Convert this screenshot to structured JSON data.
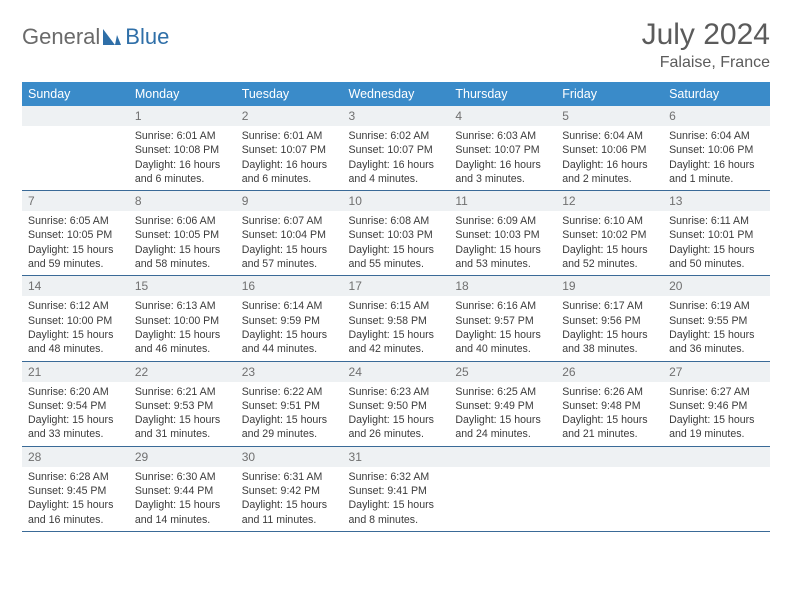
{
  "brand": {
    "part1": "General",
    "part2": "Blue"
  },
  "title": {
    "month": "July 2024",
    "location": "Falaise, France"
  },
  "colors": {
    "header_bg": "#3a8bc9",
    "header_text": "#ffffff",
    "daynum_bg": "#eef1f3",
    "daynum_text": "#707070",
    "rule": "#3a6a97",
    "body_text": "#3b3b3b",
    "title_text": "#5b5b5b",
    "logo_gray": "#6a6a6a",
    "logo_blue": "#2f6fa8"
  },
  "weekdays": [
    "Sunday",
    "Monday",
    "Tuesday",
    "Wednesday",
    "Thursday",
    "Friday",
    "Saturday"
  ],
  "weeks": [
    {
      "nums": [
        "",
        "1",
        "2",
        "3",
        "4",
        "5",
        "6"
      ],
      "cells": [
        {
          "empty": true
        },
        {
          "sunrise": "6:01 AM",
          "sunset": "10:08 PM",
          "daylight": "16 hours and 6 minutes."
        },
        {
          "sunrise": "6:01 AM",
          "sunset": "10:07 PM",
          "daylight": "16 hours and 6 minutes."
        },
        {
          "sunrise": "6:02 AM",
          "sunset": "10:07 PM",
          "daylight": "16 hours and 4 minutes."
        },
        {
          "sunrise": "6:03 AM",
          "sunset": "10:07 PM",
          "daylight": "16 hours and 3 minutes."
        },
        {
          "sunrise": "6:04 AM",
          "sunset": "10:06 PM",
          "daylight": "16 hours and 2 minutes."
        },
        {
          "sunrise": "6:04 AM",
          "sunset": "10:06 PM",
          "daylight": "16 hours and 1 minute."
        }
      ]
    },
    {
      "nums": [
        "7",
        "8",
        "9",
        "10",
        "11",
        "12",
        "13"
      ],
      "cells": [
        {
          "sunrise": "6:05 AM",
          "sunset": "10:05 PM",
          "daylight": "15 hours and 59 minutes."
        },
        {
          "sunrise": "6:06 AM",
          "sunset": "10:05 PM",
          "daylight": "15 hours and 58 minutes."
        },
        {
          "sunrise": "6:07 AM",
          "sunset": "10:04 PM",
          "daylight": "15 hours and 57 minutes."
        },
        {
          "sunrise": "6:08 AM",
          "sunset": "10:03 PM",
          "daylight": "15 hours and 55 minutes."
        },
        {
          "sunrise": "6:09 AM",
          "sunset": "10:03 PM",
          "daylight": "15 hours and 53 minutes."
        },
        {
          "sunrise": "6:10 AM",
          "sunset": "10:02 PM",
          "daylight": "15 hours and 52 minutes."
        },
        {
          "sunrise": "6:11 AM",
          "sunset": "10:01 PM",
          "daylight": "15 hours and 50 minutes."
        }
      ]
    },
    {
      "nums": [
        "14",
        "15",
        "16",
        "17",
        "18",
        "19",
        "20"
      ],
      "cells": [
        {
          "sunrise": "6:12 AM",
          "sunset": "10:00 PM",
          "daylight": "15 hours and 48 minutes."
        },
        {
          "sunrise": "6:13 AM",
          "sunset": "10:00 PM",
          "daylight": "15 hours and 46 minutes."
        },
        {
          "sunrise": "6:14 AM",
          "sunset": "9:59 PM",
          "daylight": "15 hours and 44 minutes."
        },
        {
          "sunrise": "6:15 AM",
          "sunset": "9:58 PM",
          "daylight": "15 hours and 42 minutes."
        },
        {
          "sunrise": "6:16 AM",
          "sunset": "9:57 PM",
          "daylight": "15 hours and 40 minutes."
        },
        {
          "sunrise": "6:17 AM",
          "sunset": "9:56 PM",
          "daylight": "15 hours and 38 minutes."
        },
        {
          "sunrise": "6:19 AM",
          "sunset": "9:55 PM",
          "daylight": "15 hours and 36 minutes."
        }
      ]
    },
    {
      "nums": [
        "21",
        "22",
        "23",
        "24",
        "25",
        "26",
        "27"
      ],
      "cells": [
        {
          "sunrise": "6:20 AM",
          "sunset": "9:54 PM",
          "daylight": "15 hours and 33 minutes."
        },
        {
          "sunrise": "6:21 AM",
          "sunset": "9:53 PM",
          "daylight": "15 hours and 31 minutes."
        },
        {
          "sunrise": "6:22 AM",
          "sunset": "9:51 PM",
          "daylight": "15 hours and 29 minutes."
        },
        {
          "sunrise": "6:23 AM",
          "sunset": "9:50 PM",
          "daylight": "15 hours and 26 minutes."
        },
        {
          "sunrise": "6:25 AM",
          "sunset": "9:49 PM",
          "daylight": "15 hours and 24 minutes."
        },
        {
          "sunrise": "6:26 AM",
          "sunset": "9:48 PM",
          "daylight": "15 hours and 21 minutes."
        },
        {
          "sunrise": "6:27 AM",
          "sunset": "9:46 PM",
          "daylight": "15 hours and 19 minutes."
        }
      ]
    },
    {
      "nums": [
        "28",
        "29",
        "30",
        "31",
        "",
        "",
        ""
      ],
      "cells": [
        {
          "sunrise": "6:28 AM",
          "sunset": "9:45 PM",
          "daylight": "15 hours and 16 minutes."
        },
        {
          "sunrise": "6:30 AM",
          "sunset": "9:44 PM",
          "daylight": "15 hours and 14 minutes."
        },
        {
          "sunrise": "6:31 AM",
          "sunset": "9:42 PM",
          "daylight": "15 hours and 11 minutes."
        },
        {
          "sunrise": "6:32 AM",
          "sunset": "9:41 PM",
          "daylight": "15 hours and 8 minutes."
        },
        {
          "empty": true
        },
        {
          "empty": true
        },
        {
          "empty": true
        }
      ]
    }
  ],
  "labels": {
    "sunrise": "Sunrise:",
    "sunset": "Sunset:",
    "daylight": "Daylight:"
  }
}
